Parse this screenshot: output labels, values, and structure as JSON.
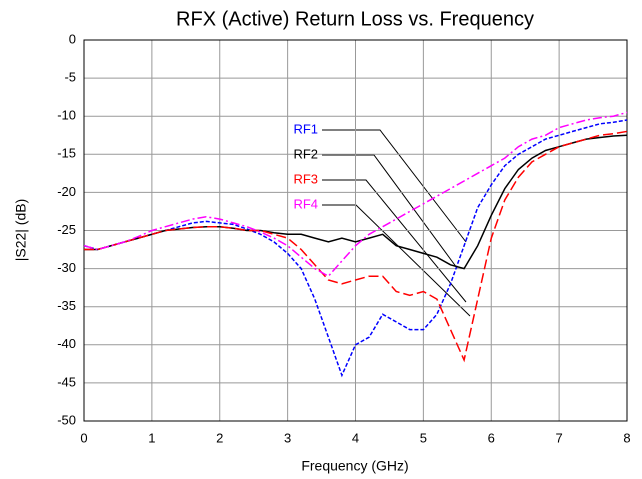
{
  "chart_data": {
    "type": "line",
    "title": "RFX (Active) Return Loss vs. Frequency",
    "x_label": "Frequency (GHz)",
    "y_label": "|S22| (dB)",
    "x": [
      0,
      0.2,
      0.4,
      0.6,
      0.8,
      1,
      1.2,
      1.4,
      1.6,
      1.8,
      2,
      2.2,
      2.4,
      2.6,
      2.8,
      3,
      3.2,
      3.4,
      3.6,
      3.8,
      4,
      4.2,
      4.4,
      4.6,
      4.8,
      5,
      5.2,
      5.4,
      5.6,
      5.8,
      6,
      6.2,
      6.4,
      6.6,
      6.8,
      7,
      7.2,
      7.4,
      7.6,
      7.8,
      8
    ],
    "series": [
      {
        "name": "RF1",
        "color": "#0000ff",
        "linestyle": "dotted",
        "values": [
          -27,
          -27.5,
          -27,
          -26.5,
          -26,
          -25.5,
          -25,
          -24.5,
          -24,
          -23.8,
          -24,
          -24.2,
          -24.8,
          -25.5,
          -26.5,
          -28,
          -30,
          -34,
          -39,
          -44,
          -40,
          -39,
          -36,
          -37,
          -38,
          -38,
          -36,
          -32,
          -27,
          -22,
          -19,
          -16.5,
          -15,
          -14,
          -13,
          -12.5,
          -12,
          -11.5,
          -11,
          -10.8,
          -10.5
        ]
      },
      {
        "name": "RF2",
        "color": "#000000",
        "linestyle": "solid",
        "values": [
          -27.5,
          -27.5,
          -27,
          -26.5,
          -26,
          -25.5,
          -25,
          -24.8,
          -24.6,
          -24.5,
          -24.5,
          -24.7,
          -25,
          -25,
          -25.3,
          -25.5,
          -25.5,
          -26,
          -26.5,
          -26,
          -26.5,
          -26,
          -25.5,
          -27,
          -27.5,
          -28,
          -28.5,
          -29.5,
          -30,
          -27,
          -23,
          -19.5,
          -17,
          -15.5,
          -14.5,
          -14,
          -13.5,
          -13,
          -12.8,
          -12.6,
          -12.5
        ]
      },
      {
        "name": "RF3",
        "color": "#ff0000",
        "linestyle": "dashed",
        "values": [
          -27.5,
          -27.5,
          -27,
          -26.5,
          -26,
          -25.5,
          -25,
          -24.8,
          -24.6,
          -24.5,
          -24.5,
          -24.7,
          -25,
          -25,
          -25.5,
          -26,
          -27.5,
          -29.5,
          -31.5,
          -32,
          -31.5,
          -31,
          -31,
          -33,
          -33.5,
          -33,
          -34,
          -38,
          -42,
          -34,
          -26,
          -21,
          -18,
          -16,
          -15,
          -14,
          -13.5,
          -13,
          -12.5,
          -12.3,
          -12
        ]
      },
      {
        "name": "RF4",
        "color": "#ff00ff",
        "linestyle": "dashdot",
        "values": [
          -27,
          -27.5,
          -27,
          -26.5,
          -25.8,
          -25,
          -24.5,
          -24,
          -23.5,
          -23.2,
          -23.5,
          -24,
          -24.5,
          -25.2,
          -26,
          -27,
          -28.5,
          -30,
          -31,
          -29,
          -27,
          -25.5,
          -24.5,
          -23.5,
          -22.5,
          -21.5,
          -20.5,
          -19.5,
          -18.5,
          -17.5,
          -16.5,
          -15.5,
          -14,
          -13,
          -12.5,
          -11.5,
          -11,
          -10.5,
          -10.2,
          -10,
          -9.5
        ]
      }
    ],
    "xlim": [
      0,
      8
    ],
    "xticks": [
      0,
      1,
      2,
      3,
      4,
      5,
      6,
      7,
      8
    ],
    "ylim": [
      -50,
      0
    ],
    "yticks": [
      0,
      -5,
      -10,
      -15,
      -20,
      -25,
      -30,
      -35,
      -40,
      -45,
      -50
    ],
    "grid": true
  }
}
